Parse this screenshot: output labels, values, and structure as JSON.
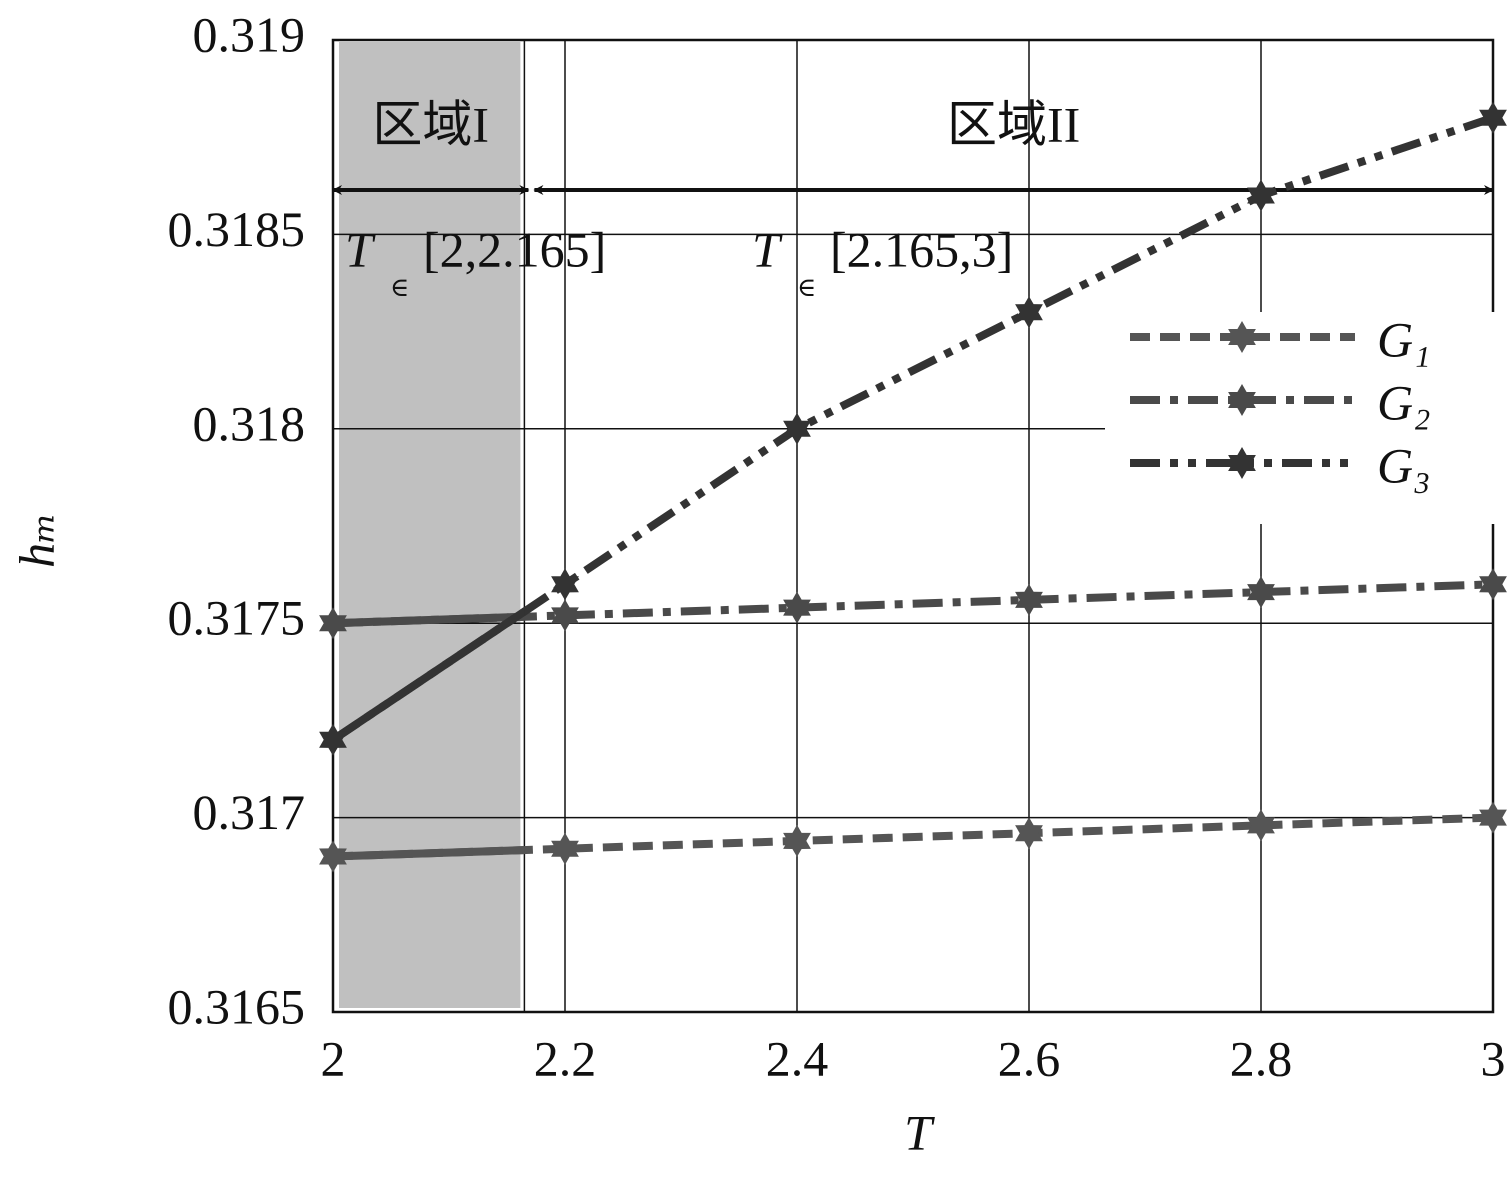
{
  "chart_data": {
    "type": "line",
    "x_label": "T",
    "y_label": "hₘ",
    "x": [
      2,
      2.2,
      2.4,
      2.6,
      2.8,
      3
    ],
    "series": [
      {
        "name": "G₁",
        "color": "#555555",
        "dash": "dashed",
        "values": [
          0.3169,
          0.31692,
          0.31694,
          0.31696,
          0.31698,
          0.317
        ]
      },
      {
        "name": "G₂",
        "color": "#4a4a4a",
        "dash": "dashdot",
        "values": [
          0.3175,
          0.31752,
          0.31754,
          0.31756,
          0.31758,
          0.3176
        ]
      },
      {
        "name": "G₃",
        "color": "#333333",
        "dash": "dashdotdot",
        "values": [
          0.3172,
          0.3176,
          0.318,
          0.3183,
          0.3186,
          0.3188
        ]
      }
    ],
    "xlim": [
      2,
      3
    ],
    "ylim": [
      0.3165,
      0.319
    ],
    "xticks": [
      2,
      2.2,
      2.4,
      2.6,
      2.8,
      3
    ],
    "yticks": [
      0.3165,
      0.317,
      0.3175,
      0.318,
      0.3185,
      0.319
    ],
    "grid": true,
    "range_variable": "T",
    "range_symbol": "∈",
    "regions": [
      {
        "label": "区域I",
        "range": "[2,2.165]",
        "start": 2,
        "end": 2.165,
        "shaded": true
      },
      {
        "label": "区域II",
        "range": "[2.165,3]",
        "start": 2.165,
        "end": 3,
        "shaded": false
      }
    ]
  }
}
